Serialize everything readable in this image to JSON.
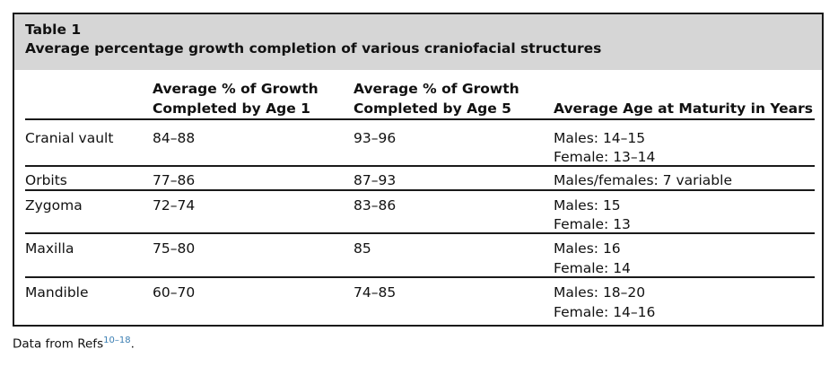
{
  "table": {
    "label": "Table 1",
    "title": "Average percentage growth completion of various craniofacial structures",
    "headers": {
      "col2_line1": "Average % of Growth",
      "col2_line2": "Completed by Age 1",
      "col3_line1": "Average % of Growth",
      "col3_line2": "Completed by Age 5",
      "col4": "Average Age at Maturity in Years"
    },
    "rows": [
      {
        "structure": "Cranial vault",
        "age1": "84–88",
        "age5": "93–96",
        "maturity_line1": "Males: 14–15",
        "maturity_line2": "Female: 13–14"
      },
      {
        "structure": "Orbits",
        "age1": "77–86",
        "age5": "87–93",
        "maturity_line1": "Males/females: 7 variable",
        "maturity_line2": ""
      },
      {
        "structure": "Zygoma",
        "age1": "72–74",
        "age5": "83–86",
        "maturity_line1": "Males: 15",
        "maturity_line2": "Female: 13"
      },
      {
        "structure": "Maxilla",
        "age1": "75–80",
        "age5": "85",
        "maturity_line1": "Males: 16",
        "maturity_line2": "Female: 14"
      },
      {
        "structure": "Mandible",
        "age1": "60–70",
        "age5": "74–85",
        "maturity_line1": "Males: 18–20",
        "maturity_line2": "Female: 14–16"
      }
    ]
  },
  "footnote": {
    "text": "Data from Refs",
    "refs": "10–18",
    "end": ".",
    "ref_color": "#3b7fb3"
  }
}
